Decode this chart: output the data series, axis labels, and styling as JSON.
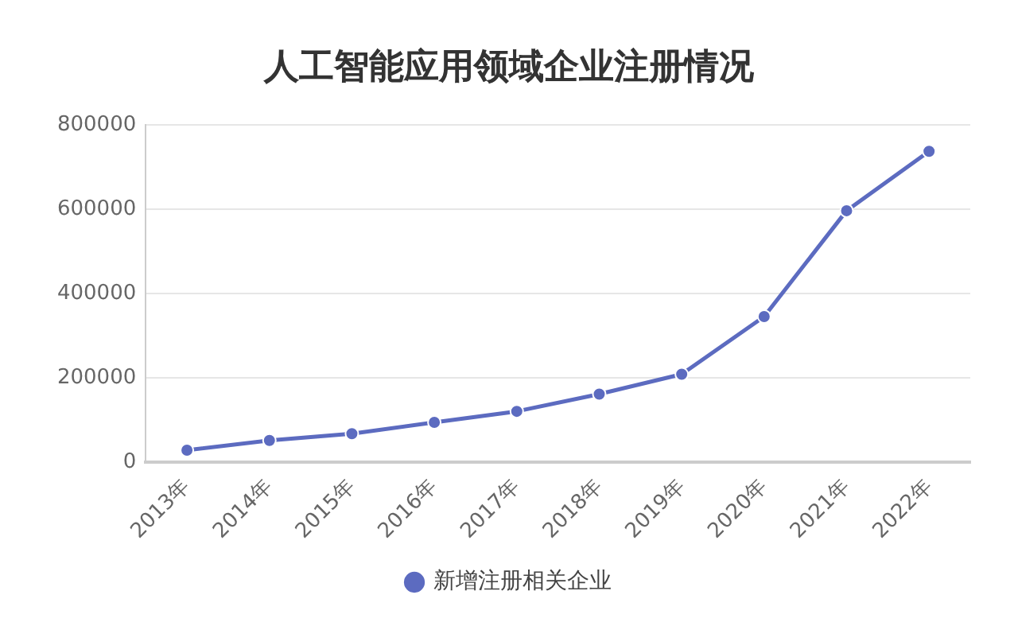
{
  "chart_data": {
    "type": "line",
    "title": "人工智能应用领域企业注册情况",
    "categories": [
      "2013年",
      "2014年",
      "2015年",
      "2016年",
      "2017年",
      "2018年",
      "2019年",
      "2020年",
      "2021年",
      "2022年"
    ],
    "series": [
      {
        "name": "新增注册相关企业",
        "color": "#5c6bc0",
        "values": [
          28000,
          51000,
          67000,
          94000,
          120000,
          161000,
          208000,
          345000,
          596000,
          737000
        ]
      }
    ],
    "ylim": [
      0,
      800000
    ],
    "yticks": [
      0,
      200000,
      400000,
      600000,
      800000
    ],
    "grid": "y",
    "legend": "bottom",
    "marker": "circle",
    "line_style": "solid"
  }
}
